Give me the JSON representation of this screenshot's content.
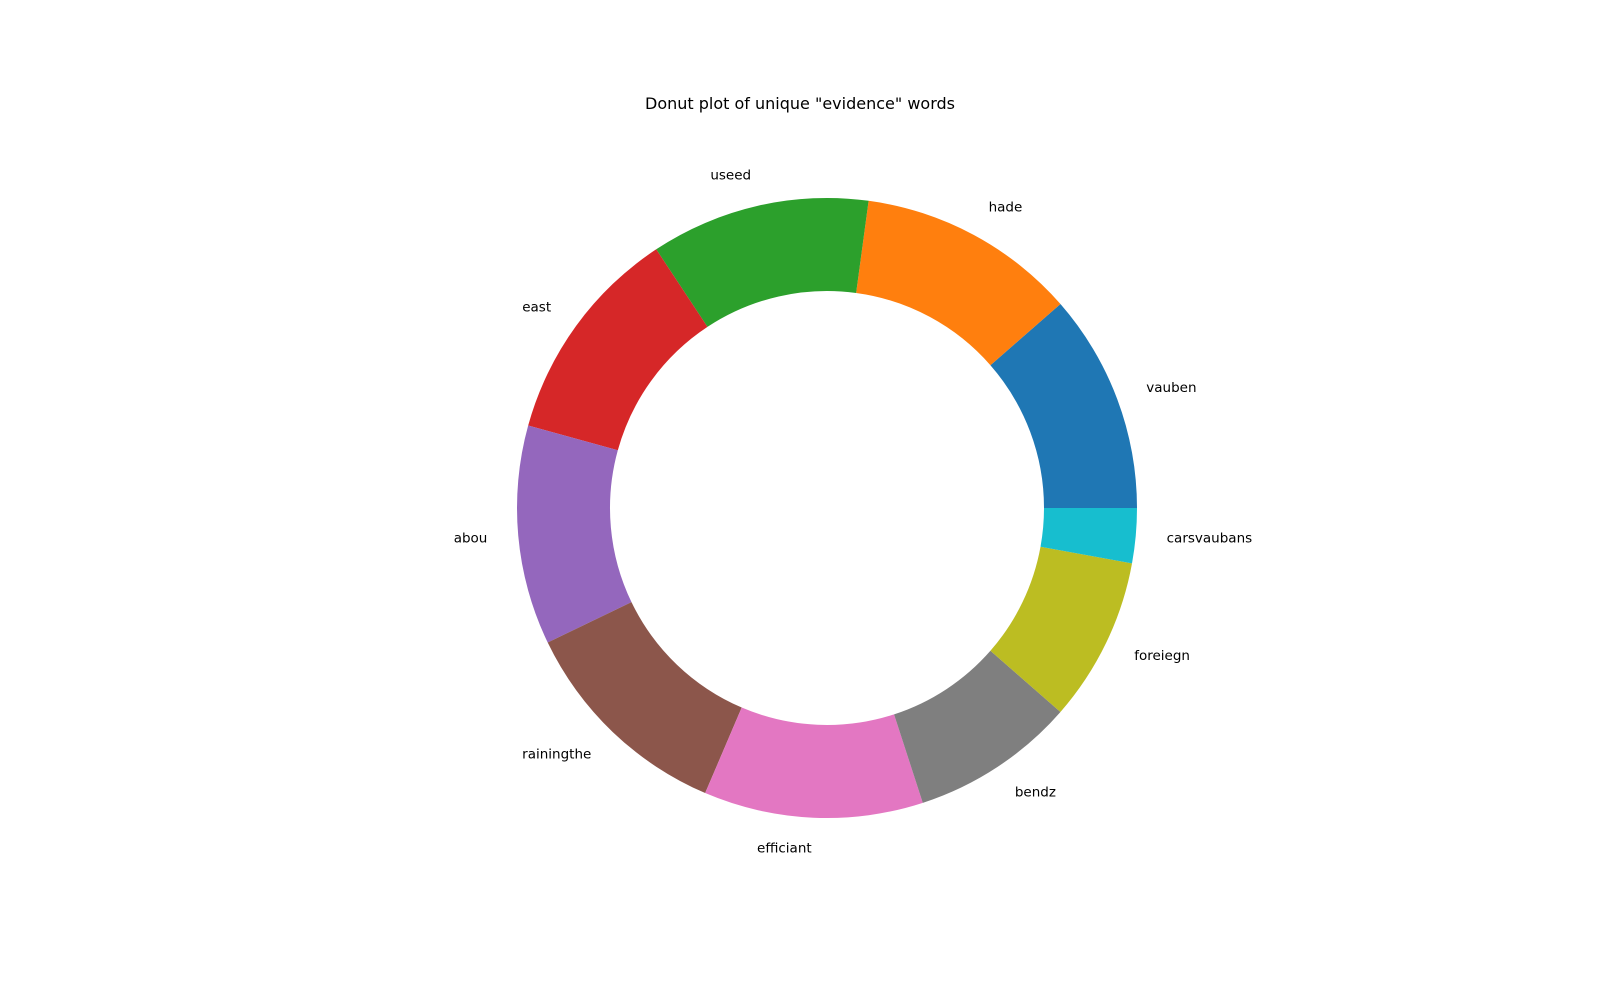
{
  "chart_data": {
    "type": "pie",
    "donut": true,
    "title": "Donut plot of unique \"evidence\" words",
    "labels": [
      "vauben",
      "hade",
      "useed",
      "east",
      "abou",
      "rainingthe",
      "efficiant",
      "bendz",
      "foreiegn",
      "carsvaubans"
    ],
    "values": [
      4,
      4,
      4,
      4,
      4,
      4,
      4,
      3,
      3,
      1
    ],
    "colors": [
      "#1f77b4",
      "#ff7f0e",
      "#2ca02c",
      "#d62728",
      "#9467bd",
      "#8c564b",
      "#e377c2",
      "#7f7f7f",
      "#bcbd22",
      "#17becf"
    ],
    "start_angle_deg": 0,
    "direction": "counterclockwise",
    "legend": "none"
  }
}
